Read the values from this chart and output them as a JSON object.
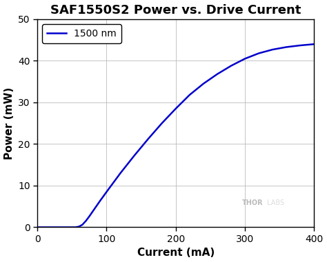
{
  "title": "SAF1550S2 Power vs. Drive Current",
  "xlabel": "Current (mA)",
  "ylabel": "Power (mW)",
  "legend_label": "1500 nm",
  "line_color": "#0000cc",
  "xlim": [
    0,
    400
  ],
  "ylim": [
    0,
    50
  ],
  "xticks": [
    0,
    100,
    200,
    300,
    400
  ],
  "yticks": [
    0,
    10,
    20,
    30,
    40,
    50
  ],
  "x_data": [
    0,
    50,
    55,
    60,
    65,
    70,
    75,
    80,
    90,
    100,
    120,
    140,
    160,
    180,
    200,
    220,
    240,
    260,
    280,
    300,
    320,
    340,
    360,
    380,
    400
  ],
  "y_data": [
    0,
    0,
    0,
    0.15,
    0.6,
    1.5,
    2.6,
    3.8,
    6.2,
    8.5,
    13.0,
    17.2,
    21.2,
    25.0,
    28.5,
    31.8,
    34.5,
    36.8,
    38.8,
    40.5,
    41.8,
    42.7,
    43.3,
    43.7,
    44.0
  ],
  "thorlabs_text": "THOR",
  "thorlabs_text2": "LABS",
  "background_color": "#ffffff",
  "grid_color": "#bbbbbb",
  "title_fontsize": 13,
  "label_fontsize": 11,
  "tick_fontsize": 10,
  "legend_fontsize": 10
}
